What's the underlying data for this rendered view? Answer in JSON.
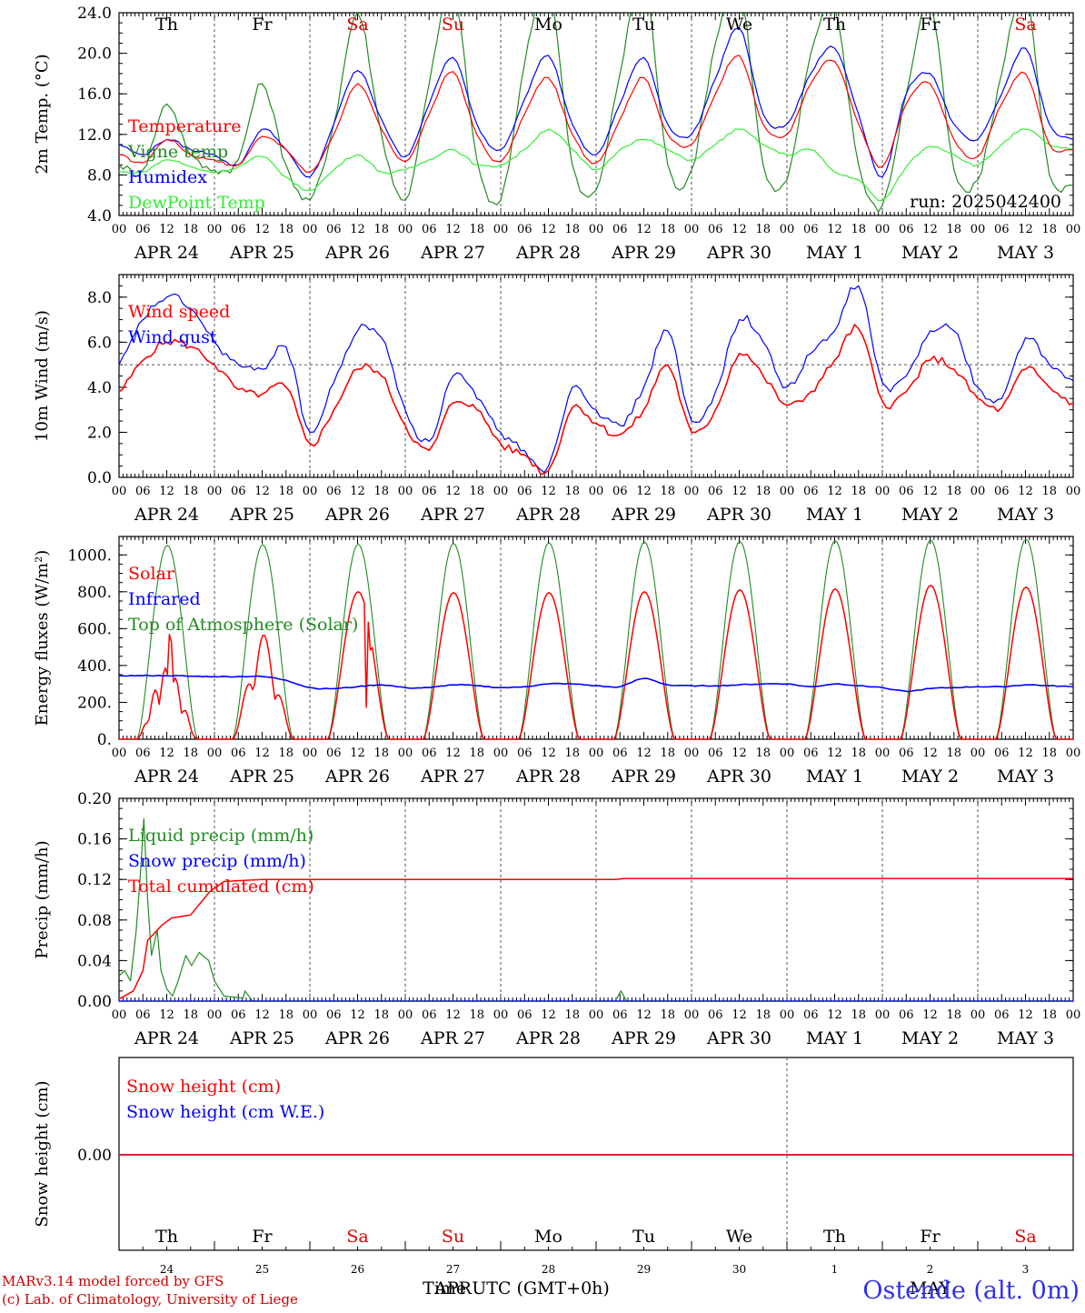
{
  "meteogram": {
    "run_label": "run: 2025042400",
    "hour_ticks": [
      "00",
      "06",
      "12",
      "18"
    ],
    "end_tick": "00",
    "date_labels": [
      "APR 24",
      "APR 25",
      "APR 26",
      "APR 27",
      "APR 28",
      "APR 29",
      "APR 30",
      "MAY  1",
      "MAY  2",
      "MAY  3"
    ],
    "weekdays": [
      "Th",
      "Fr",
      "Sa",
      "Su",
      "Mo",
      "Tu",
      "We",
      "Th",
      "Fr",
      "Sa"
    ],
    "weekend_color": "#e00000",
    "weekday_color": "#000000",
    "day_numbers": [
      "24",
      "25",
      "26",
      "27",
      "28",
      "29",
      "30",
      "1",
      "2",
      "3"
    ],
    "month_labels": [
      "APR",
      "MAY"
    ],
    "x_axis_title": "Time UTC (GMT+0h)",
    "footer_line1": "MARv3.14 model forced by GFS",
    "footer_line2": "(c) Lab. of Climatology, University of Liege",
    "station": "Ostende (alt. 0m)"
  },
  "chart_data": [
    {
      "type": "line",
      "id": "temp",
      "ylabel": "2m Temp. (°C)",
      "ylim": [
        4,
        24
      ],
      "yticks": [
        "4.0",
        "8.0",
        "12.0",
        "16.0",
        "20.0",
        "24.0"
      ],
      "ytick_values": [
        4,
        8,
        12,
        16,
        20,
        24
      ],
      "x_days": 10,
      "grid": false,
      "series": [
        {
          "name": "Temperature",
          "color": "#ff0000",
          "days": [
            [
              10.0,
              9.2,
              11.5,
              10.0
            ],
            [
              9.5,
              9.0,
              11.8,
              10.5
            ],
            [
              8.3,
              12.0,
              17.0,
              12.5
            ],
            [
              9.3,
              14.0,
              18.2,
              12.0
            ],
            [
              9.3,
              14.0,
              17.6,
              12.0
            ],
            [
              9.2,
              13.5,
              17.6,
              12.0
            ],
            [
              11.0,
              16.0,
              19.8,
              13.0
            ],
            [
              12.0,
              17.0,
              19.2,
              13.0
            ],
            [
              8.8,
              15.0,
              17.0,
              11.5
            ],
            [
              9.8,
              15.0,
              18.0,
              11.0
            ]
          ],
          "end": 10.5
        },
        {
          "name": "Vigne temp",
          "color": "#228b22",
          "days": [
            [
              9.0,
              8.5,
              15.0,
              10.0
            ],
            [
              8.5,
              9.5,
              17.0,
              9.0
            ],
            [
              5.5,
              13.0,
              24.0,
              12.0
            ],
            [
              5.5,
              17.0,
              26.5,
              9.5
            ],
            [
              5.5,
              19.0,
              27.0,
              9.0
            ],
            [
              6.5,
              18.0,
              27.5,
              9.0
            ],
            [
              8.5,
              21.0,
              27.0,
              9.0
            ],
            [
              7.5,
              20.0,
              24.5,
              9.0
            ],
            [
              5.0,
              16.0,
              25.0,
              8.5
            ],
            [
              7.5,
              18.0,
              26.5,
              8.0
            ]
          ],
          "end": 7.0
        },
        {
          "name": "Humidex",
          "color": "#0000ff",
          "days": [
            [
              11.0,
              10.0,
              11.5,
              10.5
            ],
            [
              10.0,
              9.0,
              12.5,
              10.5
            ],
            [
              7.8,
              13.0,
              18.3,
              13.5
            ],
            [
              9.8,
              15.0,
              19.6,
              13.0
            ],
            [
              10.5,
              15.5,
              19.8,
              13.0
            ],
            [
              10.0,
              15.0,
              19.6,
              13.0
            ],
            [
              12.0,
              17.5,
              22.5,
              14.0
            ],
            [
              13.0,
              18.0,
              20.5,
              14.0
            ],
            [
              7.8,
              16.0,
              18.0,
              13.0
            ],
            [
              11.5,
              16.0,
              20.5,
              13.0
            ]
          ],
          "end": 11.5
        },
        {
          "name": "DewPoint Temp",
          "color": "#33ee33",
          "days": [
            [
              8.3,
              8.3,
              9.5,
              8.8
            ],
            [
              8.3,
              8.8,
              9.8,
              7.8
            ],
            [
              6.5,
              8.5,
              10.0,
              8.3
            ],
            [
              8.5,
              9.5,
              10.5,
              9.0
            ],
            [
              9.0,
              10.5,
              12.5,
              10.5
            ],
            [
              8.5,
              10.5,
              11.5,
              10.5
            ],
            [
              9.5,
              11.0,
              12.5,
              11.0
            ],
            [
              10.0,
              10.5,
              8.3,
              7.5
            ],
            [
              5.5,
              8.8,
              10.8,
              10.0
            ],
            [
              9.0,
              11.0,
              12.5,
              11.0
            ]
          ],
          "end": 10.5
        }
      ]
    },
    {
      "type": "line",
      "id": "wind",
      "ylabel": "10m Wind (m/s)",
      "ylim": [
        0,
        9
      ],
      "yticks": [
        "0.0",
        "2.0",
        "4.0",
        "6.0",
        "8.0"
      ],
      "ytick_values": [
        0,
        2,
        4,
        6,
        8
      ],
      "reference_line": 5.0,
      "x_days": 10,
      "series": [
        {
          "name": "Wind speed",
          "color": "#ff0000",
          "days": [
            [
              3.8,
              5.2,
              6.0,
              5.8
            ],
            [
              5.0,
              3.9,
              3.7,
              4.0
            ],
            [
              1.5,
              3.0,
              4.8,
              4.5
            ],
            [
              2.3,
              1.2,
              3.3,
              3.0
            ],
            [
              1.5,
              1.0,
              0.3,
              3.1
            ],
            [
              2.4,
              1.9,
              3.0,
              5.0
            ],
            [
              2.0,
              3.0,
              5.5,
              4.5
            ],
            [
              3.2,
              3.8,
              5.2,
              6.6
            ],
            [
              3.4,
              3.8,
              5.2,
              4.8
            ],
            [
              3.5,
              3.1,
              4.8,
              4.0
            ]
          ],
          "end": 3.3
        },
        {
          "name": "Wind gust",
          "color": "#0000ff",
          "days": [
            [
              5.0,
              7.0,
              8.0,
              7.5
            ],
            [
              6.0,
              5.0,
              4.8,
              5.8
            ],
            [
              2.0,
              4.2,
              6.5,
              6.2
            ],
            [
              3.0,
              1.6,
              4.5,
              3.5
            ],
            [
              2.0,
              1.2,
              0.5,
              4.0
            ],
            [
              3.0,
              2.3,
              4.0,
              6.5
            ],
            [
              2.5,
              3.8,
              7.0,
              6.0
            ],
            [
              4.0,
              5.5,
              6.5,
              8.5
            ],
            [
              4.2,
              4.5,
              6.5,
              6.5
            ],
            [
              4.0,
              3.5,
              6.2,
              5.0
            ]
          ],
          "end": 4.3
        }
      ]
    },
    {
      "type": "area",
      "id": "energy",
      "ylabel": "Energy fluxes (W/m²)",
      "ylim": [
        0,
        1100
      ],
      "yticks": [
        "0.",
        "200.",
        "400.",
        "600.",
        "800.",
        "1000."
      ],
      "ytick_values": [
        0,
        200,
        400,
        600,
        800,
        1000
      ],
      "x_days": 10,
      "series": [
        {
          "name": "Solar",
          "color": "#ff0000",
          "day_peaks": [
            265,
            305,
            800,
            795,
            795,
            800,
            810,
            815,
            835,
            825
          ]
        },
        {
          "name": "Infrared",
          "color": "#0000ff",
          "days": [
            [
              345,
              345,
              345,
              342
            ],
            [
              340,
              340,
              340,
              320
            ],
            [
              280,
              275,
              285,
              295
            ],
            [
              280,
              280,
              295,
              290
            ],
            [
              280,
              285,
              300,
              300
            ],
            [
              290,
              285,
              330,
              295
            ],
            [
              290,
              290,
              295,
              300
            ],
            [
              300,
              285,
              300,
              290
            ],
            [
              280,
              260,
              275,
              280
            ],
            [
              285,
              285,
              295,
              290
            ]
          ],
          "end": 285
        },
        {
          "name": "Top of Atmosphere (Solar)",
          "color": "#228b22",
          "day_peaks": [
            1052,
            1055,
            1058,
            1062,
            1066,
            1070,
            1073,
            1077,
            1081,
            1085
          ]
        }
      ]
    },
    {
      "type": "line",
      "id": "precip",
      "ylabel": "Precip (mm/h)",
      "ylim": [
        0,
        0.2
      ],
      "yticks": [
        "0.00",
        "0.04",
        "0.08",
        "0.12",
        "0.16",
        "0.20"
      ],
      "ytick_values": [
        0,
        0.04,
        0.08,
        0.12,
        0.16,
        0.2
      ],
      "x_days": 10,
      "series": [
        {
          "name": "Liquid precip (mm/h)",
          "color": "#228b22",
          "points": [
            [
              0,
              0.025
            ],
            [
              0.06,
              0.03
            ],
            [
              0.12,
              0.02
            ],
            [
              0.18,
              0.07
            ],
            [
              0.22,
              0.12
            ],
            [
              0.26,
              0.18
            ],
            [
              0.3,
              0.1
            ],
            [
              0.34,
              0.045
            ],
            [
              0.4,
              0.07
            ],
            [
              0.44,
              0.03
            ],
            [
              0.5,
              0.012
            ],
            [
              0.56,
              0.005
            ],
            [
              0.62,
              0.02
            ],
            [
              0.7,
              0.045
            ],
            [
              0.76,
              0.035
            ],
            [
              0.84,
              0.048
            ],
            [
              0.94,
              0.04
            ],
            [
              1.0,
              0.02
            ],
            [
              1.1,
              0.005
            ],
            [
              1.3,
              0.003
            ],
            [
              1.32,
              0.01
            ],
            [
              1.4,
              0.0
            ],
            [
              5.2,
              0.0
            ],
            [
              5.26,
              0.01
            ],
            [
              5.32,
              0.0
            ],
            [
              10.0,
              0.0
            ]
          ]
        },
        {
          "name": "Snow precip (mm/h)",
          "color": "#0000ff",
          "points": [
            [
              0,
              0.0
            ],
            [
              10.0,
              0.0
            ]
          ]
        },
        {
          "name": "Total cumulated (cm)",
          "color": "#ff0000",
          "points": [
            [
              0,
              0.002
            ],
            [
              0.15,
              0.01
            ],
            [
              0.25,
              0.03
            ],
            [
              0.3,
              0.06
            ],
            [
              0.45,
              0.075
            ],
            [
              0.55,
              0.082
            ],
            [
              0.75,
              0.085
            ],
            [
              0.95,
              0.108
            ],
            [
              1.1,
              0.118
            ],
            [
              1.5,
              0.12
            ],
            [
              5.2,
              0.12
            ],
            [
              5.3,
              0.121
            ],
            [
              10.0,
              0.121
            ]
          ]
        }
      ]
    },
    {
      "type": "line",
      "id": "snow",
      "ylabel": "Snow height (cm)",
      "yticks": [
        "0.00"
      ],
      "ytick_values": [
        0
      ],
      "x_days": 10,
      "series": [
        {
          "name": "Snow height (cm)",
          "color": "#ff0000",
          "points": [
            [
              0,
              0
            ],
            [
              10,
              0
            ]
          ]
        },
        {
          "name": "Snow height (cm W.E.)",
          "color": "#0000ff",
          "points": [
            [
              0,
              0
            ],
            [
              10,
              0
            ]
          ]
        }
      ]
    }
  ]
}
